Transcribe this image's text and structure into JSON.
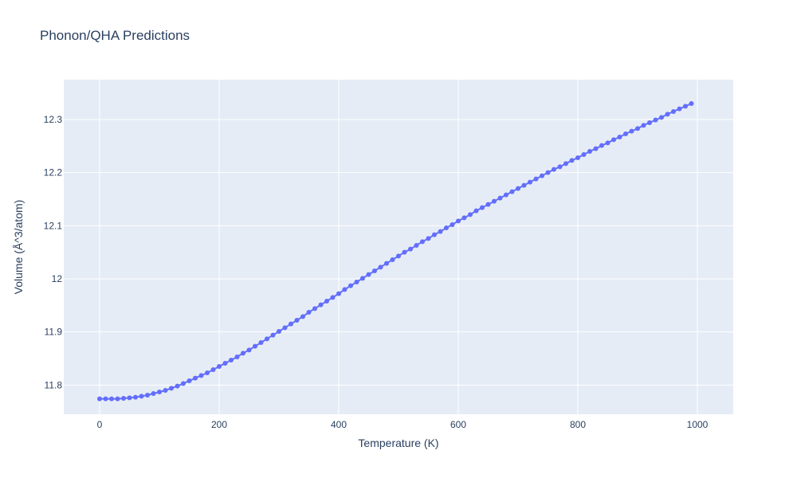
{
  "chart_data": {
    "type": "scatter",
    "mode": "lines+markers",
    "title": "Phonon/QHA Predictions",
    "xlabel": "Temperature (K)",
    "ylabel": "Volume (Å^3/atom)",
    "xlim": [
      -60,
      1060
    ],
    "ylim": [
      11.745,
      12.375
    ],
    "xticks": [
      0,
      200,
      400,
      600,
      800,
      1000
    ],
    "xtick_labels": [
      "0",
      "200",
      "400",
      "600",
      "800",
      "1000"
    ],
    "yticks": [
      11.8,
      11.9,
      12.0,
      12.1,
      12.2,
      12.3
    ],
    "ytick_labels": [
      "11.8",
      "11.9",
      "12",
      "12.1",
      "12.2",
      "12.3"
    ],
    "grid": true,
    "colors": {
      "plot_bg": "#e5ecf6",
      "grid": "#ffffff",
      "series": "#636efa",
      "text": "#2a3f5f"
    },
    "x": [
      0,
      10,
      20,
      30,
      40,
      50,
      60,
      70,
      80,
      90,
      100,
      110,
      120,
      130,
      140,
      150,
      160,
      170,
      180,
      190,
      200,
      210,
      220,
      230,
      240,
      250,
      260,
      270,
      280,
      290,
      300,
      310,
      320,
      330,
      340,
      350,
      360,
      370,
      380,
      390,
      400,
      410,
      420,
      430,
      440,
      450,
      460,
      470,
      480,
      490,
      500,
      510,
      520,
      530,
      540,
      550,
      560,
      570,
      580,
      590,
      600,
      610,
      620,
      630,
      640,
      650,
      660,
      670,
      680,
      690,
      700,
      710,
      720,
      730,
      740,
      750,
      760,
      770,
      780,
      790,
      800,
      810,
      820,
      830,
      840,
      850,
      860,
      870,
      880,
      890,
      900,
      910,
      920,
      930,
      940,
      950,
      960,
      970,
      980,
      990
    ],
    "y": [
      11.774,
      11.774,
      11.774,
      11.774,
      11.775,
      11.776,
      11.777,
      11.779,
      11.781,
      11.784,
      11.787,
      11.79,
      11.794,
      11.798,
      11.803,
      11.808,
      11.813,
      11.818,
      11.823,
      11.829,
      11.835,
      11.841,
      11.847,
      11.853,
      11.86,
      11.866,
      11.873,
      11.88,
      11.887,
      11.894,
      11.901,
      11.908,
      11.915,
      11.922,
      11.929,
      11.937,
      11.944,
      11.951,
      11.958,
      11.965,
      11.972,
      11.98,
      11.987,
      11.994,
      12.001,
      12.008,
      12.015,
      12.022,
      12.029,
      12.036,
      12.043,
      12.05,
      12.056,
      12.063,
      12.07,
      12.076,
      12.083,
      12.089,
      12.096,
      12.102,
      12.109,
      12.115,
      12.121,
      12.128,
      12.134,
      12.14,
      12.146,
      12.152,
      12.158,
      12.164,
      12.17,
      12.176,
      12.182,
      12.188,
      12.194,
      12.2,
      12.206,
      12.211,
      12.217,
      12.223,
      12.228,
      12.234,
      12.24,
      12.245,
      12.251,
      12.256,
      12.262,
      12.267,
      12.273,
      12.278,
      12.283,
      12.289,
      12.294,
      12.299,
      12.304,
      12.31,
      12.315,
      12.32,
      12.325,
      12.33
    ]
  }
}
